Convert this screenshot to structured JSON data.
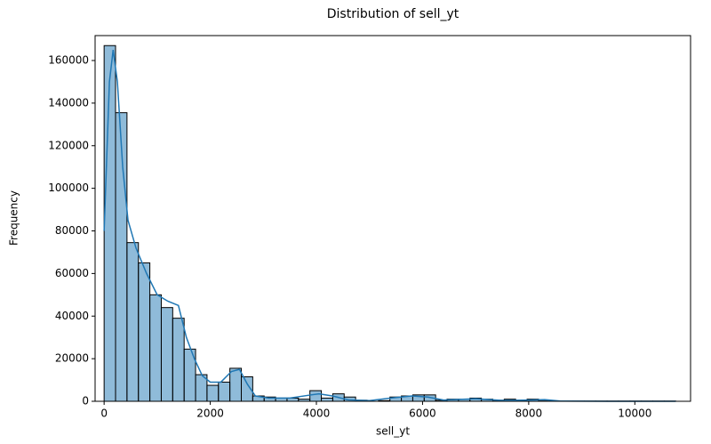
{
  "chart_data": {
    "type": "histogram",
    "title": "Distribution of sell_yt",
    "xlabel": "sell_yt",
    "ylabel": "Frequency",
    "bins": [
      0,
      215.4,
      430.8,
      646.2,
      861.6,
      1077,
      1292.4,
      1507.8,
      1723.2,
      1938.6,
      2154,
      2369.4,
      2584.8,
      2800.2,
      3015.6,
      3231,
      3446.4,
      3661.8,
      3877.2,
      4092.6,
      4308,
      4523.4,
      4738.8,
      4954.2,
      5169.6,
      5385,
      5600.4,
      5815.8,
      6031.2,
      6246.6,
      6462,
      6677.4,
      6892.8,
      7108.2,
      7323.6,
      7539,
      7754.4,
      7969.8,
      8185.2,
      8400.6,
      8616,
      8831.4,
      9046.8,
      9262.2,
      9477.6,
      9693,
      9908.4,
      10123.8,
      10339.2,
      10554.6,
      10770
    ],
    "values": [
      167000,
      135500,
      74500,
      65000,
      50000,
      44000,
      39000,
      24500,
      12500,
      7500,
      9000,
      15500,
      11500,
      2500,
      2000,
      1500,
      1500,
      1000,
      5000,
      1500,
      3500,
      2000,
      500,
      0,
      300,
      2000,
      2500,
      3000,
      3000,
      500,
      1000,
      1000,
      1500,
      1000,
      500,
      1000,
      300,
      1000,
      500,
      100,
      100,
      100,
      100,
      100,
      100,
      100,
      100,
      100,
      100,
      100
    ],
    "color": "#1f77b4",
    "alpha": 0.5,
    "edgecolor": "#000000",
    "kde": {
      "color": "#1f77b4",
      "x": [
        0,
        100,
        170,
        250,
        350,
        450,
        600,
        800,
        1000,
        1200,
        1400,
        1550,
        1700,
        1850,
        2000,
        2200,
        2400,
        2550,
        2700,
        2850,
        3100,
        3500,
        3900,
        4050,
        4300,
        4600,
        5000,
        5400,
        5800,
        6100,
        6400,
        7000,
        7500,
        8000,
        8300,
        8600,
        9500,
        10770
      ],
      "values": [
        80000,
        150000,
        165000,
        150000,
        110000,
        85000,
        72000,
        60000,
        50000,
        47000,
        45000,
        30000,
        20000,
        12000,
        9000,
        9000,
        14000,
        15000,
        8000,
        2500,
        1500,
        1500,
        3000,
        3500,
        2500,
        700,
        300,
        1500,
        2500,
        2000,
        600,
        1200,
        400,
        600,
        800,
        100,
        20,
        20
      ]
    },
    "xlim": [
      -170,
      11050
    ],
    "ylim": [
      0,
      171700
    ],
    "xticks": [
      0,
      2000,
      4000,
      6000,
      8000,
      10000
    ],
    "yticks": [
      0,
      20000,
      40000,
      60000,
      80000,
      100000,
      120000,
      140000,
      160000
    ]
  }
}
